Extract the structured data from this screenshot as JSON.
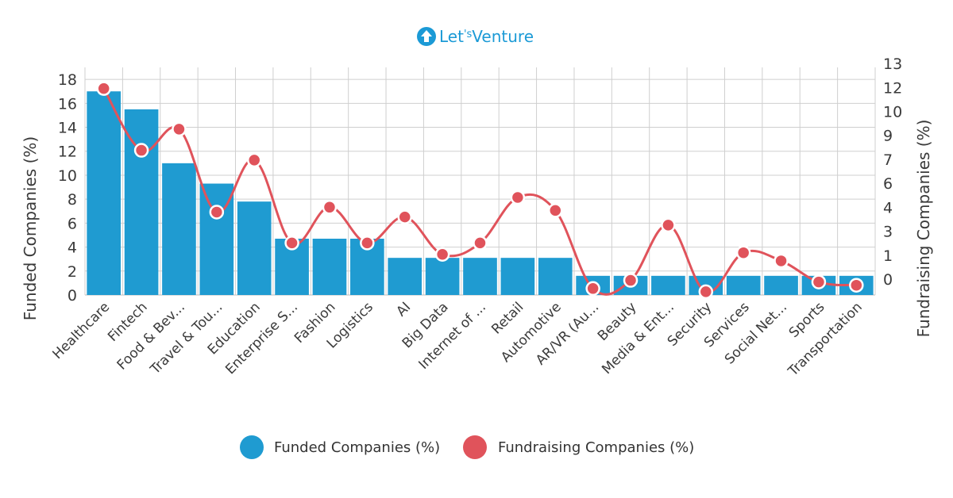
{
  "logo": {
    "text_left": "Let",
    "text_mark": "'s",
    "text_right": "Venture",
    "color": "#1b9ad6"
  },
  "chart_data": {
    "type": "bar",
    "categories": [
      "Healthcare",
      "Fintech",
      "Food & Bev...",
      "Travel & Tou...",
      "Education",
      "Enterprise S...",
      "Fashion",
      "Logistics",
      "AI",
      "Big Data",
      "Internet of ...",
      "Retail",
      "Automotive",
      "AR/VR (Au...",
      "Beauty",
      "Media & Ent...",
      "Security",
      "Services",
      "Social Net...",
      "Sports",
      "Transportation"
    ],
    "series": [
      {
        "name": "Funded Companies (%)",
        "type": "bar",
        "axis": "left",
        "color": "#1f9bd1",
        "values": [
          17,
          15.5,
          11,
          9.3,
          7.8,
          4.7,
          4.7,
          4.7,
          3.1,
          3.1,
          3.1,
          3.1,
          3.1,
          1.6,
          1.6,
          1.6,
          1.6,
          1.6,
          1.6,
          1.6,
          1.6
        ]
      },
      {
        "name": "Fundraising Companies (%)",
        "type": "line",
        "axis": "right",
        "color": "#e0535b",
        "values": [
          12.7,
          8.9,
          10.2,
          5.1,
          8.3,
          3.2,
          5.4,
          3.2,
          4.8,
          2.5,
          3.2,
          6.0,
          5.2,
          0.4,
          0.9,
          4.3,
          0.2,
          2.6,
          2.1,
          0.8,
          0.6
        ]
      }
    ],
    "ylabel": "Funded Companies (%)",
    "y2label": "Fundraising Companies (%)",
    "ylim": [
      0,
      19
    ],
    "y2lim": [
      0,
      14
    ],
    "yticks": [
      0,
      2,
      4,
      6,
      8,
      10,
      12,
      14,
      16,
      18
    ],
    "y2ticks": [
      0,
      1,
      3,
      4,
      6,
      7,
      9,
      10,
      12,
      13
    ],
    "grid": true,
    "legend_position": "bottom-center"
  }
}
